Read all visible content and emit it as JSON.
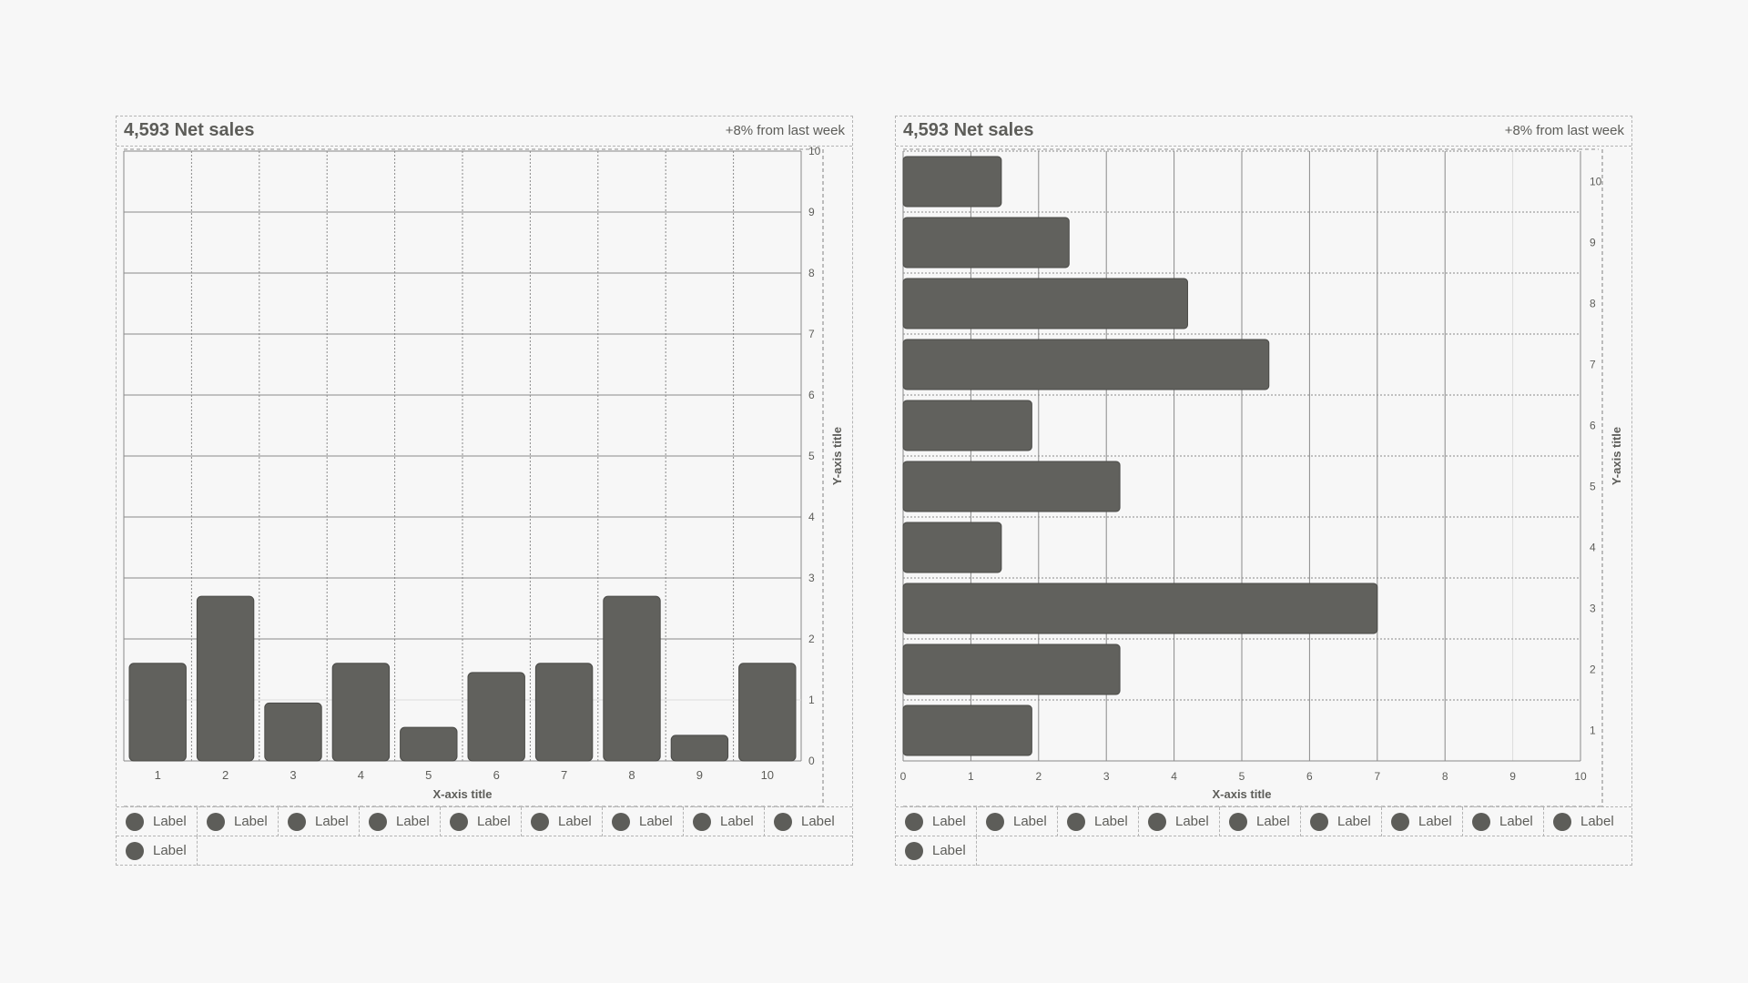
{
  "colors": {
    "bar": "#61615d",
    "grid": "#8a8a8a",
    "text": "#5d5d59",
    "background": "#f7f7f7"
  },
  "cards": [
    {
      "title": "4,593 Net sales",
      "delta": "+8% from last week",
      "legend": [
        "Label",
        "Label",
        "Label",
        "Label",
        "Label",
        "Label",
        "Label",
        "Label",
        "Label",
        "Label"
      ]
    },
    {
      "title": "4,593 Net sales",
      "delta": "+8% from last week",
      "legend": [
        "Label",
        "Label",
        "Label",
        "Label",
        "Label",
        "Label",
        "Label",
        "Label",
        "Label",
        "Label"
      ]
    }
  ],
  "chart_data": [
    {
      "type": "bar",
      "orientation": "vertical",
      "categories": [
        "1",
        "2",
        "3",
        "4",
        "5",
        "6",
        "7",
        "8",
        "9",
        "10"
      ],
      "values": [
        1.6,
        2.7,
        0.95,
        1.6,
        0.55,
        1.45,
        1.6,
        2.7,
        0.42,
        1.6
      ],
      "xlabel": "X-axis title",
      "ylabel": "Y-axis title",
      "ylim": [
        0,
        10
      ],
      "yticks": [
        "0",
        "1",
        "2",
        "3",
        "4",
        "5",
        "6",
        "7",
        "8",
        "9",
        "10"
      ],
      "grid": true
    },
    {
      "type": "bar",
      "orientation": "horizontal",
      "categories": [
        "1",
        "2",
        "3",
        "4",
        "5",
        "6",
        "7",
        "8",
        "9",
        "10"
      ],
      "values": [
        1.9,
        3.2,
        7.0,
        1.45,
        3.2,
        1.9,
        5.4,
        4.2,
        2.45,
        1.45
      ],
      "xlabel": "X-axis title",
      "ylabel": "Y-axis title",
      "xlim": [
        0,
        10
      ],
      "xticks": [
        "0",
        "1",
        "2",
        "3",
        "4",
        "5",
        "6",
        "7",
        "8",
        "9",
        "10"
      ],
      "grid": true
    }
  ]
}
